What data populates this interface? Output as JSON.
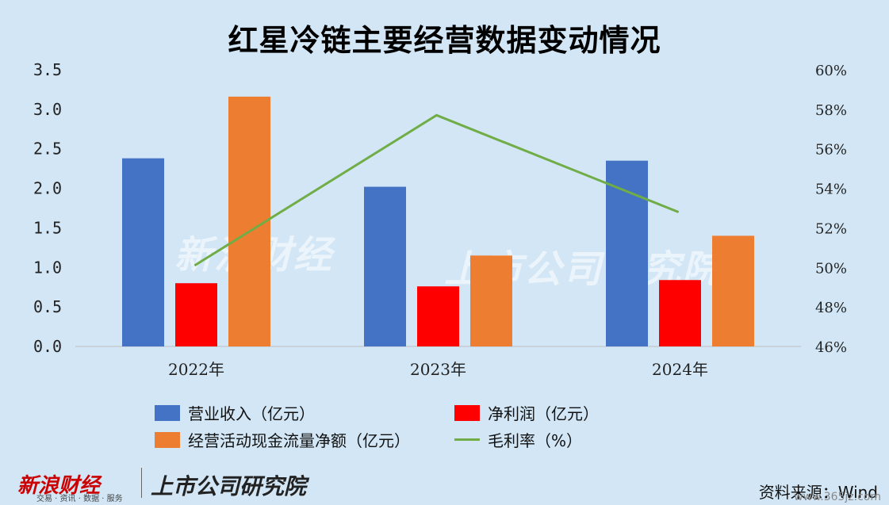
{
  "chart_data": {
    "type": "bar",
    "title": "红星冷链主要经营数据变动情况",
    "categories": [
      "2022年",
      "2023年",
      "2024年"
    ],
    "series": [
      {
        "name": "营业收入（亿元）",
        "values": [
          2.38,
          2.02,
          2.35
        ],
        "color": "#4472c4"
      },
      {
        "name": "净利润（亿元）",
        "values": [
          0.8,
          0.76,
          0.84
        ],
        "color": "#ff0000"
      },
      {
        "name": "经营活动现金流量净额（亿元）",
        "values": [
          3.16,
          1.15,
          1.4
        ],
        "color": "#ed7d31"
      },
      {
        "name": "毛利率（%）",
        "type": "line",
        "axis": "right",
        "values": [
          50.1,
          57.7,
          52.8
        ],
        "color": "#70ad47"
      }
    ],
    "ylim_left": [
      0,
      3.5
    ],
    "yticks_left": [
      "0.0",
      "0.5",
      "1.0",
      "1.5",
      "2.0",
      "2.5",
      "3.0",
      "3.5"
    ],
    "ylim_right": [
      46,
      60
    ],
    "yticks_right": [
      "46%",
      "48%",
      "50%",
      "52%",
      "54%",
      "56%",
      "58%",
      "60%"
    ],
    "legend_position": "bottom"
  },
  "footer": {
    "logo_left": "新浪财经",
    "logo_left_sub": "交易 · 资讯 · 数据 · 服务",
    "logo_right": "上市公司研究院",
    "source": "资料来源：Wind",
    "watermark_site": "www.365jz.com"
  },
  "watermark": {
    "left": "新浪财经",
    "right": "上市公司研究院"
  }
}
